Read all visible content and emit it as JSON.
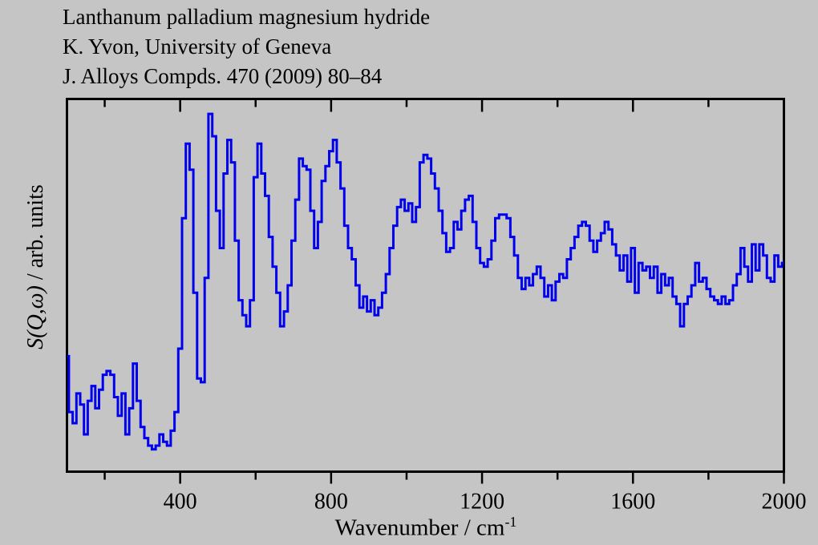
{
  "chart_data": {
    "type": "line",
    "title": "Lanthanum palladium magnesium hydride",
    "subtitle": "K. Yvon, University of Geneva",
    "reference": "J. Alloys Compds. 470 (2009) 80–84",
    "xlabel": "Wavenumber / cm",
    "xlabel_exponent": "-1",
    "ylabel_italic": "S(Q,ω)",
    "ylabel_rest": " / arb. units",
    "xlim": [
      100,
      2000
    ],
    "ylim": [
      0,
      1
    ],
    "y_units": "arb. units",
    "x_major_ticks": [
      400,
      800,
      1200,
      1600,
      2000
    ],
    "x_major_tick_labels": [
      "400",
      "800",
      "1200",
      "1600",
      "2000"
    ],
    "x_minor_ticks": [
      200,
      600,
      1000,
      1400,
      1800
    ],
    "y_ticks": [],
    "grid": false,
    "legend": false,
    "step_mode": true,
    "x_step": 10,
    "line_color": "#0000ee",
    "frame_color": "#000000",
    "background_color": "#c5c5c5",
    "x": [
      100,
      110,
      120,
      130,
      140,
      150,
      160,
      170,
      180,
      190,
      200,
      210,
      220,
      230,
      240,
      250,
      260,
      270,
      280,
      290,
      300,
      310,
      320,
      330,
      340,
      350,
      360,
      370,
      380,
      390,
      400,
      410,
      420,
      430,
      440,
      450,
      460,
      470,
      480,
      490,
      500,
      510,
      520,
      530,
      540,
      550,
      560,
      570,
      580,
      590,
      600,
      610,
      620,
      630,
      640,
      650,
      660,
      670,
      680,
      690,
      700,
      710,
      720,
      730,
      740,
      750,
      760,
      770,
      780,
      790,
      800,
      810,
      820,
      830,
      840,
      850,
      860,
      870,
      880,
      890,
      900,
      910,
      920,
      930,
      940,
      950,
      960,
      970,
      980,
      990,
      1000,
      1010,
      1020,
      1030,
      1040,
      1050,
      1060,
      1070,
      1080,
      1090,
      1100,
      1110,
      1120,
      1130,
      1140,
      1150,
      1160,
      1170,
      1180,
      1190,
      1200,
      1210,
      1220,
      1230,
      1240,
      1250,
      1260,
      1270,
      1280,
      1290,
      1300,
      1310,
      1320,
      1330,
      1340,
      1350,
      1360,
      1370,
      1380,
      1390,
      1400,
      1410,
      1420,
      1430,
      1440,
      1450,
      1460,
      1470,
      1480,
      1490,
      1500,
      1510,
      1520,
      1530,
      1540,
      1550,
      1560,
      1570,
      1580,
      1590,
      1600,
      1610,
      1620,
      1630,
      1640,
      1650,
      1660,
      1670,
      1680,
      1690,
      1700,
      1710,
      1720,
      1730,
      1740,
      1750,
      1760,
      1770,
      1780,
      1790,
      1800,
      1810,
      1820,
      1830,
      1840,
      1850,
      1860,
      1870,
      1880,
      1890,
      1900,
      1910,
      1920,
      1930,
      1940,
      1950,
      1960,
      1970,
      1980,
      1990,
      2000
    ],
    "y": [
      0.31,
      0.16,
      0.13,
      0.21,
      0.18,
      0.1,
      0.19,
      0.23,
      0.17,
      0.22,
      0.26,
      0.27,
      0.26,
      0.2,
      0.15,
      0.21,
      0.1,
      0.17,
      0.29,
      0.19,
      0.12,
      0.09,
      0.07,
      0.06,
      0.07,
      0.1,
      0.08,
      0.07,
      0.11,
      0.16,
      0.33,
      0.68,
      0.88,
      0.81,
      0.48,
      0.25,
      0.24,
      0.52,
      0.96,
      0.9,
      0.7,
      0.6,
      0.8,
      0.89,
      0.83,
      0.62,
      0.46,
      0.42,
      0.39,
      0.46,
      0.79,
      0.88,
      0.8,
      0.74,
      0.63,
      0.55,
      0.48,
      0.39,
      0.43,
      0.5,
      0.62,
      0.73,
      0.84,
      0.82,
      0.81,
      0.7,
      0.6,
      0.67,
      0.78,
      0.82,
      0.86,
      0.89,
      0.83,
      0.76,
      0.66,
      0.6,
      0.57,
      0.5,
      0.44,
      0.47,
      0.43,
      0.46,
      0.42,
      0.44,
      0.48,
      0.53,
      0.6,
      0.66,
      0.71,
      0.73,
      0.7,
      0.72,
      0.67,
      0.71,
      0.83,
      0.85,
      0.84,
      0.8,
      0.76,
      0.7,
      0.64,
      0.59,
      0.6,
      0.67,
      0.65,
      0.7,
      0.73,
      0.74,
      0.67,
      0.6,
      0.56,
      0.55,
      0.57,
      0.62,
      0.68,
      0.69,
      0.69,
      0.68,
      0.63,
      0.58,
      0.52,
      0.49,
      0.52,
      0.5,
      0.53,
      0.55,
      0.52,
      0.47,
      0.5,
      0.46,
      0.51,
      0.53,
      0.52,
      0.57,
      0.6,
      0.63,
      0.66,
      0.67,
      0.66,
      0.62,
      0.59,
      0.62,
      0.64,
      0.67,
      0.65,
      0.61,
      0.58,
      0.54,
      0.58,
      0.51,
      0.6,
      0.48,
      0.56,
      0.54,
      0.55,
      0.52,
      0.55,
      0.48,
      0.53,
      0.5,
      0.52,
      0.47,
      0.45,
      0.39,
      0.45,
      0.47,
      0.5,
      0.56,
      0.51,
      0.52,
      0.49,
      0.47,
      0.46,
      0.45,
      0.47,
      0.45,
      0.46,
      0.5,
      0.53,
      0.6,
      0.55,
      0.51,
      0.61,
      0.54,
      0.61,
      0.58,
      0.52,
      0.51,
      0.58,
      0.55,
      0.56
    ]
  }
}
